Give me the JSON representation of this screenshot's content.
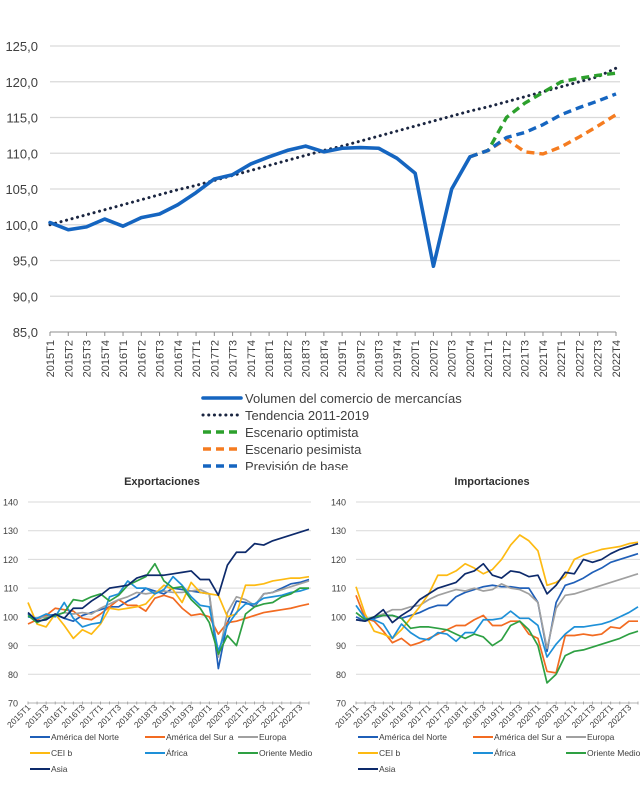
{
  "chart_data": [
    {
      "type": "line",
      "title": "",
      "xlabel": "",
      "ylabel": "",
      "ylim": [
        85,
        125
      ],
      "yticks": [
        "85,0",
        "90,0",
        "95,0",
        "100,0",
        "105,0",
        "110,0",
        "115,0",
        "120,0",
        "125,0"
      ],
      "ytick_values": [
        85,
        90,
        95,
        100,
        105,
        110,
        115,
        120,
        125
      ],
      "grid": true,
      "legend_position": "bottom",
      "x": [
        "2015T1",
        "2015T2",
        "2015T3",
        "2015T4",
        "2016T1",
        "2016T2",
        "2016T3",
        "2016T4",
        "2017T1",
        "2017T2",
        "2017T3",
        "2017T4",
        "2018T1",
        "2018T2",
        "2018T3",
        "2018T4",
        "2019T1",
        "2019T2",
        "2019T3",
        "2019T4",
        "2020T1",
        "2020T2",
        "2020T3",
        "2020T4",
        "2021T1",
        "2021T2",
        "2021T3",
        "2021T4",
        "2022T1",
        "2022T2",
        "2022T3",
        "2022T4"
      ],
      "series": [
        {
          "name": "Volumen del comercio de mercancías",
          "color": "#1565C0",
          "style": "solid",
          "values": [
            100.3,
            99.3,
            99.7,
            100.8,
            99.8,
            101.0,
            101.5,
            102.8,
            104.5,
            106.4,
            107.0,
            108.5,
            109.5,
            110.4,
            111.0,
            110.2,
            110.7,
            110.8,
            110.7,
            109.3,
            107.2,
            94.2,
            105.0,
            109.5,
            null,
            null,
            null,
            null,
            null,
            null,
            null,
            null
          ]
        },
        {
          "name": "Tendencia 2011-2019",
          "color": "#1a2540",
          "style": "dotted",
          "values": [
            100.0,
            100.7,
            101.4,
            102.1,
            102.8,
            103.5,
            104.2,
            104.9,
            105.5,
            106.2,
            106.9,
            107.6,
            108.3,
            109.0,
            109.7,
            110.4,
            111.0,
            111.7,
            112.4,
            113.1,
            113.8,
            114.5,
            115.2,
            115.9,
            116.5,
            117.2,
            117.9,
            118.6,
            119.3,
            120.0,
            120.7,
            121.9
          ]
        },
        {
          "name": "Escenario optimista",
          "color": "#2CA02C",
          "style": "dashed",
          "values": [
            null,
            null,
            null,
            null,
            null,
            null,
            null,
            null,
            null,
            null,
            null,
            null,
            null,
            null,
            null,
            null,
            null,
            null,
            null,
            null,
            null,
            null,
            null,
            109.5,
            110.4,
            115.0,
            117.0,
            118.5,
            120.0,
            120.5,
            120.9,
            121.2
          ]
        },
        {
          "name": "Escenario pesimista",
          "color": "#F57C20",
          "style": "dashed",
          "values": [
            null,
            null,
            null,
            null,
            null,
            null,
            null,
            null,
            null,
            null,
            null,
            null,
            null,
            null,
            null,
            null,
            null,
            null,
            null,
            null,
            null,
            null,
            null,
            109.5,
            110.4,
            112.0,
            110.2,
            109.9,
            110.9,
            112.3,
            113.8,
            115.4
          ]
        },
        {
          "name": "Previsión de base",
          "color": "#1565C0",
          "style": "dashed",
          "values": [
            null,
            null,
            null,
            null,
            null,
            null,
            null,
            null,
            null,
            null,
            null,
            null,
            null,
            null,
            null,
            null,
            null,
            null,
            null,
            null,
            null,
            null,
            null,
            109.5,
            110.4,
            112.2,
            112.9,
            114.0,
            115.4,
            116.4,
            117.3,
            118.3
          ]
        }
      ]
    },
    {
      "type": "line",
      "title": "Exportaciones",
      "xlabel": "",
      "ylabel": "",
      "ylim": [
        70,
        140
      ],
      "yticks": [
        "70",
        "80",
        "90",
        "100",
        "110",
        "120",
        "130",
        "140"
      ],
      "ytick_values": [
        70,
        80,
        90,
        100,
        110,
        120,
        130,
        140
      ],
      "grid": true,
      "legend_position": "bottom",
      "x_tick_labels": [
        "2015T1",
        "2015T3",
        "2016T1",
        "2016T3",
        "2017T1",
        "2017T3",
        "2018T1",
        "2018T3",
        "2019T1",
        "2019T3",
        "2020T1",
        "2020T3",
        "2021T1",
        "2021T3",
        "2022T1",
        "2022T3"
      ],
      "series": [
        {
          "name": "América del Norte",
          "color": "#1F5FB8",
          "values": [
            101.0,
            99.0,
            100.5,
            100.8,
            99.5,
            98.5,
            100.5,
            101.5,
            102.5,
            103.5,
            103.5,
            105.5,
            107.0,
            110.0,
            109.0,
            108.0,
            110.0,
            109.5,
            109.0,
            108.5,
            108.0,
            82.0,
            98.0,
            105.5,
            105.0,
            103.5,
            108.0,
            108.5,
            110.0,
            111.5,
            112.0,
            113.0
          ]
        },
        {
          "name": "América del Sur a",
          "color": "#F26B21",
          "values": [
            97.5,
            99.0,
            100.5,
            103.0,
            102.5,
            102.0,
            99.5,
            99.0,
            101.0,
            103.5,
            106.0,
            104.0,
            104.0,
            102.0,
            106.5,
            107.5,
            106.5,
            103.0,
            100.5,
            101.0,
            100.0,
            94.0,
            98.0,
            98.5,
            99.5,
            100.5,
            101.5,
            102.0,
            102.5,
            103.0,
            103.8,
            104.5
          ]
        },
        {
          "name": "Europa",
          "color": "#A0A0A0",
          "values": [
            100.0,
            99.5,
            100.0,
            100.5,
            101.5,
            101.0,
            101.5,
            101.0,
            103.0,
            104.5,
            106.0,
            107.0,
            108.5,
            108.0,
            108.5,
            109.0,
            108.5,
            108.5,
            109.0,
            109.5,
            108.0,
            86.0,
            101.5,
            107.0,
            106.0,
            104.0,
            108.0,
            108.5,
            109.5,
            110.5,
            111.5,
            112.5
          ]
        },
        {
          "name": "CEI b",
          "color": "#FDBA12",
          "values": [
            105.0,
            97.5,
            96.5,
            101.0,
            97.0,
            92.5,
            95.5,
            94.0,
            97.5,
            103.0,
            102.5,
            103.0,
            103.5,
            104.5,
            108.0,
            111.0,
            109.5,
            105.0,
            112.0,
            108.5,
            108.0,
            107.5,
            100.0,
            101.0,
            111.0,
            111.0,
            111.5,
            112.5,
            113.0,
            113.5,
            113.5,
            114.0
          ]
        },
        {
          "name": "África",
          "color": "#1E90D8",
          "values": [
            100.0,
            99.5,
            101.0,
            100.0,
            105.0,
            99.5,
            96.5,
            97.5,
            98.0,
            107.0,
            108.0,
            112.5,
            110.0,
            110.0,
            108.0,
            109.5,
            114.0,
            111.0,
            107.0,
            104.0,
            103.5,
            88.0,
            97.0,
            101.5,
            104.5,
            104.5,
            106.5,
            107.0,
            107.5,
            108.5,
            109.0,
            110.0
          ]
        },
        {
          "name": "Oriente Medio",
          "color": "#2EA043",
          "values": [
            100.5,
            98.0,
            99.5,
            100.5,
            101.5,
            106.0,
            105.5,
            107.0,
            108.0,
            105.5,
            107.5,
            111.0,
            112.5,
            114.0,
            118.5,
            112.5,
            110.0,
            110.5,
            106.0,
            103.0,
            98.0,
            87.0,
            93.5,
            90.0,
            101.0,
            103.5,
            104.5,
            105.0,
            107.0,
            108.0,
            110.0,
            110.0
          ]
        },
        {
          "name": "Asia",
          "color": "#0D2A6B",
          "values": [
            101.5,
            98.5,
            99.0,
            101.0,
            99.5,
            103.0,
            103.0,
            105.5,
            107.5,
            110.0,
            110.5,
            111.0,
            113.5,
            114.5,
            114.5,
            114.5,
            115.0,
            115.5,
            116.0,
            113.0,
            113.0,
            107.5,
            118.0,
            122.5,
            122.5,
            125.5,
            125.0,
            126.5,
            127.5,
            128.5,
            129.5,
            130.5
          ]
        }
      ]
    },
    {
      "type": "line",
      "title": "Importaciones",
      "xlabel": "",
      "ylabel": "",
      "ylim": [
        70,
        140
      ],
      "yticks": [
        "70",
        "80",
        "90",
        "100",
        "110",
        "120",
        "130",
        "140"
      ],
      "ytick_values": [
        70,
        80,
        90,
        100,
        110,
        120,
        130,
        140
      ],
      "grid": true,
      "legend_position": "bottom",
      "x_tick_labels": [
        "2015T1",
        "2015T3",
        "2016T1",
        "2016T3",
        "2017T1",
        "2017T3",
        "2018T1",
        "2018T3",
        "2019T1",
        "2019T3",
        "2020T1",
        "2020T3",
        "2021T1",
        "2021T3",
        "2022T1",
        "2022T3"
      ],
      "series": [
        {
          "name": "América del Norte",
          "color": "#1F5FB8",
          "values": [
            100.0,
            98.5,
            99.5,
            100.5,
            100.5,
            99.5,
            100.5,
            101.5,
            103.0,
            104.0,
            104.0,
            107.0,
            108.5,
            109.5,
            110.5,
            111.0,
            110.5,
            110.5,
            110.0,
            110.0,
            105.0,
            88.0,
            105.0,
            111.0,
            112.0,
            113.5,
            115.5,
            117.0,
            119.0,
            120.0,
            121.0,
            122.0
          ]
        },
        {
          "name": "América del Sur a",
          "color": "#F26B21",
          "values": [
            107.5,
            99.5,
            98.5,
            95.0,
            91.0,
            92.5,
            90.0,
            91.0,
            92.5,
            94.0,
            95.5,
            97.0,
            97.0,
            99.0,
            100.5,
            97.0,
            97.0,
            98.5,
            98.5,
            94.0,
            92.5,
            81.0,
            80.5,
            93.5,
            93.5,
            94.0,
            93.5,
            94.0,
            96.5,
            96.0,
            98.5,
            98.5
          ]
        },
        {
          "name": "Europa",
          "color": "#A0A0A0",
          "values": [
            99.0,
            98.5,
            100.0,
            101.0,
            102.5,
            102.5,
            103.5,
            104.0,
            106.0,
            107.5,
            108.5,
            109.5,
            109.0,
            110.0,
            109.0,
            109.5,
            111.5,
            110.0,
            109.5,
            108.0,
            105.0,
            89.0,
            103.0,
            107.5,
            108.0,
            109.0,
            110.0,
            111.0,
            112.0,
            113.0,
            114.0,
            115.0
          ]
        },
        {
          "name": "CEI b",
          "color": "#FDBA12",
          "values": [
            110.5,
            101.0,
            95.0,
            94.0,
            92.5,
            95.5,
            99.5,
            103.5,
            108.0,
            114.5,
            114.5,
            116.0,
            118.5,
            117.0,
            115.0,
            116.5,
            120.0,
            125.0,
            128.5,
            126.5,
            123.0,
            111.0,
            112.0,
            114.0,
            120.0,
            121.5,
            122.5,
            123.5,
            124.0,
            124.5,
            125.5,
            126.0
          ]
        },
        {
          "name": "África",
          "color": "#1E90D8",
          "values": [
            104.0,
            99.5,
            99.0,
            97.5,
            92.5,
            97.5,
            94.5,
            92.5,
            92.0,
            94.5,
            94.0,
            91.5,
            94.5,
            94.5,
            99.0,
            99.0,
            99.5,
            102.0,
            99.5,
            99.5,
            97.0,
            86.0,
            90.5,
            94.0,
            96.5,
            96.5,
            97.0,
            97.5,
            98.5,
            100.0,
            101.5,
            103.5
          ]
        },
        {
          "name": "Oriente Medio",
          "color": "#2EA043",
          "values": [
            101.5,
            99.0,
            100.0,
            100.5,
            100.5,
            99.5,
            96.0,
            96.5,
            96.5,
            96.0,
            95.5,
            94.0,
            92.5,
            94.0,
            93.0,
            90.0,
            92.0,
            97.0,
            98.5,
            95.5,
            90.0,
            77.0,
            80.0,
            86.5,
            88.0,
            88.5,
            89.5,
            90.5,
            91.5,
            92.5,
            94.0,
            95.0
          ]
        },
        {
          "name": "Asia",
          "color": "#0D2A6B",
          "values": [
            99.0,
            98.5,
            100.0,
            102.5,
            98.0,
            100.5,
            102.5,
            106.0,
            108.0,
            110.0,
            111.0,
            112.0,
            115.0,
            116.0,
            118.5,
            114.5,
            113.5,
            116.0,
            115.5,
            114.0,
            114.5,
            108.0,
            111.0,
            115.5,
            115.0,
            120.0,
            119.0,
            120.0,
            122.0,
            123.5,
            124.5,
            125.5
          ]
        }
      ]
    }
  ]
}
